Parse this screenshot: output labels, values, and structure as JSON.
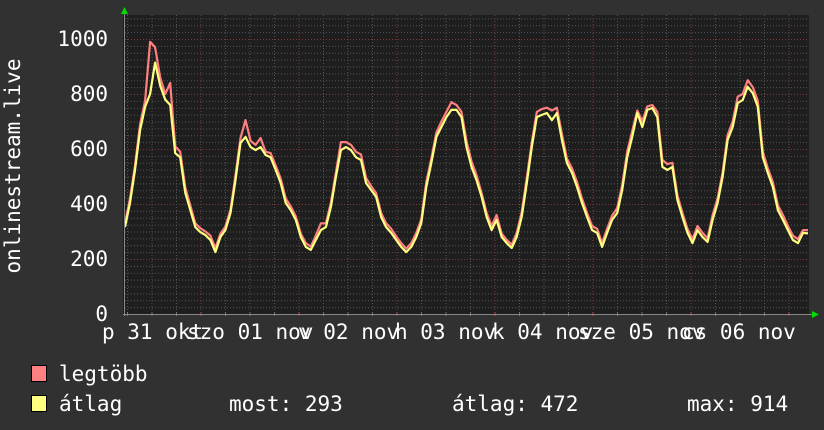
{
  "chart_data": {
    "type": "line",
    "ylabel": "onlinestream.live",
    "ylim": [
      0,
      1100
    ],
    "y_ticks": [
      0,
      200,
      400,
      600,
      800,
      1000
    ],
    "x_tick_labels": [
      "p 31 okt",
      "szo 01 nov",
      "v 02 nov",
      "h 03 nov",
      "k 04 nov",
      "sze 05 nov",
      "cs 06 nov"
    ],
    "grid": true,
    "legend_placement": "bottom-left",
    "series": [
      {
        "name": "legtöbb",
        "color": "#ff8080",
        "values": [
          330,
          420,
          540,
          690,
          775,
          990,
          970,
          860,
          800,
          840,
          610,
          590,
          460,
          395,
          330,
          312,
          300,
          285,
          240,
          292,
          318,
          380,
          505,
          640,
          705,
          630,
          615,
          640,
          590,
          585,
          540,
          492,
          420,
          392,
          355,
          292,
          258,
          245,
          285,
          330,
          330,
          405,
          515,
          625,
          625,
          615,
          590,
          580,
          495,
          465,
          440,
          368,
          330,
          310,
          282,
          258,
          238,
          258,
          295,
          345,
          480,
          565,
          660,
          700,
          735,
          770,
          760,
          735,
          630,
          555,
          505,
          440,
          368,
          320,
          360,
          292,
          270,
          252,
          295,
          370,
          495,
          625,
          735,
          745,
          750,
          740,
          750,
          655,
          565,
          530,
          480,
          420,
          368,
          320,
          310,
          258,
          310,
          358,
          385,
          470,
          590,
          665,
          740,
          700,
          755,
          760,
          735,
          560,
          545,
          550,
          432,
          368,
          310,
          272,
          320,
          295,
          275,
          360,
          420,
          515,
          650,
          700,
          790,
          800,
          850,
          825,
          775,
          590,
          530,
          480,
          395,
          360,
          320,
          285,
          272,
          305,
          305
        ]
      },
      {
        "name": "átlag",
        "color": "#ffff80",
        "values": [
          316,
          404,
          524,
          669,
          753,
          800,
          914,
          830,
          780,
          760,
          585,
          570,
          440,
          378,
          316,
          298,
          287,
          269,
          225,
          280,
          305,
          367,
          487,
          622,
          644,
          607,
          596,
          607,
          578,
          570,
          524,
          476,
          404,
          378,
          342,
          280,
          244,
          233,
          269,
          305,
          316,
          389,
          498,
          596,
          607,
          596,
          570,
          560,
          476,
          451,
          426,
          353,
          316,
          295,
          269,
          244,
          225,
          244,
          280,
          331,
          462,
          549,
          644,
          680,
          716,
          742,
          742,
          716,
          607,
          535,
          487,
          426,
          353,
          305,
          342,
          280,
          258,
          240,
          280,
          353,
          476,
          607,
          716,
          724,
          731,
          705,
          731,
          633,
          549,
          513,
          462,
          404,
          353,
          305,
          295,
          244,
          295,
          342,
          367,
          451,
          570,
          644,
          731,
          680,
          742,
          749,
          716,
          535,
          524,
          535,
          415,
          353,
          295,
          258,
          305,
          280,
          262,
          342,
          404,
          498,
          633,
          680,
          767,
          778,
          826,
          803,
          753,
          570,
          513,
          462,
          378,
          342,
          305,
          269,
          258,
          295,
          293
        ]
      }
    ]
  },
  "legend": {
    "items": [
      {
        "label": "legtöbb",
        "color": "#ff8080"
      },
      {
        "label": "átlag",
        "color": "#ffff80"
      }
    ],
    "stats": {
      "current": "most: 293",
      "average": "átlag: 472",
      "max": "max: 914"
    }
  },
  "colors": {
    "background": "#313131",
    "plot_background": "#1e1e1e",
    "major_grid": "#7a3a3a",
    "minor_grid": "#555555",
    "axis_arrow": "#00dd00"
  }
}
